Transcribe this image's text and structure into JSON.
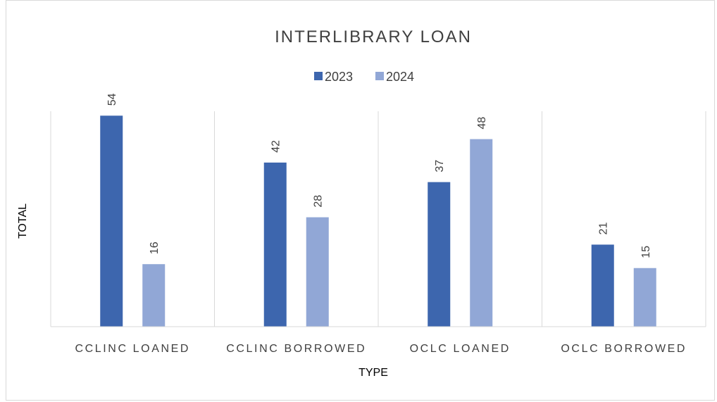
{
  "chart_data": {
    "type": "bar",
    "title": "INTERLIBRARY LOAN",
    "xlabel": "TYPE",
    "ylabel": "TOTAL",
    "categories": [
      "CCLINC LOANED",
      "CCLINC BORROWED",
      "OCLC LOANED",
      "OCLC BORROWED"
    ],
    "series": [
      {
        "name": "2023",
        "values": [
          54,
          42,
          37,
          21
        ],
        "color": "#3d66ae"
      },
      {
        "name": "2024",
        "values": [
          16,
          28,
          48,
          15
        ],
        "color": "#91a7d6"
      }
    ],
    "ylim": [
      0,
      60
    ],
    "grid": "vertical category separators",
    "legend_position": "top",
    "data_labels": true
  }
}
